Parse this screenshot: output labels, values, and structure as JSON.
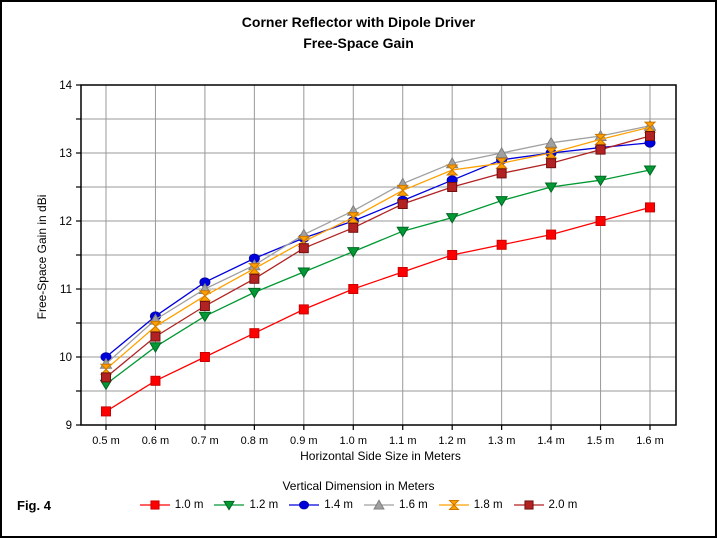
{
  "figure_label": "Fig. 4",
  "title": {
    "line1": "Corner Reflector with Dipole Driver",
    "line2": "Free-Space Gain"
  },
  "chart_data": {
    "type": "line",
    "title": "Corner Reflector with Dipole Driver",
    "subtitle": "Free-Space Gain",
    "xlabel": "Horizontal Side Size in Meters",
    "ylabel": "Free-Space Gain in dBi",
    "legend_title": "Vertical Dimension in Meters",
    "legend_position": "bottom",
    "grid": true,
    "grid_color": "#999999",
    "axis_color": "#000000",
    "ylim": [
      9,
      14
    ],
    "y_ticks": [
      9,
      10,
      11,
      12,
      13,
      14
    ],
    "y_grid_step": 0.5,
    "categories": [
      "0.5 m",
      "0.6 m",
      "0.7 m",
      "0.8 m",
      "0.9 m",
      "1.0 m",
      "1.1 m",
      "1.2 m",
      "1.3 m",
      "1.4 m",
      "1.5 m",
      "1.6 m"
    ],
    "series": [
      {
        "name": "1.0 m",
        "marker": "square",
        "color": "#FF0000",
        "edge": "#CC0000",
        "values": [
          9.2,
          9.65,
          10.0,
          10.35,
          10.7,
          11.0,
          11.25,
          11.5,
          11.65,
          11.8,
          12.0,
          12.2
        ]
      },
      {
        "name": "1.2 m",
        "marker": "triangle-down",
        "color": "#009933",
        "edge": "#006622",
        "values": [
          9.6,
          10.15,
          10.6,
          10.95,
          11.25,
          11.55,
          11.85,
          12.05,
          12.3,
          12.5,
          12.6,
          12.75
        ]
      },
      {
        "name": "1.4 m",
        "marker": "circle",
        "color": "#0000DD",
        "edge": "#0000AA",
        "values": [
          10.0,
          10.6,
          11.1,
          11.45,
          11.75,
          12.0,
          12.3,
          12.6,
          12.9,
          13.0,
          13.08,
          13.15
        ]
      },
      {
        "name": "1.6 m",
        "marker": "triangle-up",
        "color": "#A0A0A0",
        "edge": "#808080",
        "values": [
          9.9,
          10.55,
          11.0,
          11.35,
          11.8,
          12.15,
          12.55,
          12.85,
          13.0,
          13.15,
          13.25,
          13.4
        ]
      },
      {
        "name": "1.8 m",
        "marker": "bowtie",
        "color": "#FFA000",
        "edge": "#CC7700",
        "values": [
          9.82,
          10.45,
          10.9,
          11.3,
          11.7,
          12.05,
          12.45,
          12.75,
          12.85,
          13.0,
          13.2,
          13.38
        ]
      },
      {
        "name": "2.0 m",
        "marker": "square",
        "color": "#B22222",
        "edge": "#701010",
        "values": [
          9.7,
          10.3,
          10.75,
          11.15,
          11.6,
          11.9,
          12.25,
          12.5,
          12.7,
          12.85,
          13.05,
          13.25
        ]
      }
    ]
  }
}
